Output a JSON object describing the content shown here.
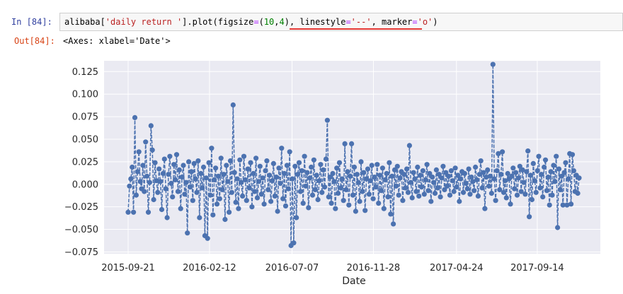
{
  "cell": {
    "in_prompt": "In  [84]:",
    "out_prompt": "Out[84]:",
    "code": {
      "p1": "alibaba[",
      "p2": "'daily return '",
      "p3": "].plot(figsize",
      "p4": "=",
      "p5": "(",
      "p6": "10",
      "p7": ",",
      "p8": "4",
      "p9": "), ",
      "p10": "linestyle",
      "p11": "=",
      "p12": "'--'",
      "p13": ", marker",
      "p14": "=",
      "p15": "'o'",
      "p16": ")"
    },
    "output_text": "<Axes: xlabel='Date'>",
    "highlight_color": "#e53935"
  },
  "chart_data": {
    "type": "line",
    "linestyle": "dashed",
    "marker": "o",
    "color": "#4c72b0",
    "background": "#eaeaf2",
    "grid": true,
    "xlabel": "Date",
    "ylabel": "",
    "x_tick_labels": [
      "2015-09-21",
      "2016-02-12",
      "2016-07-07",
      "2016-11-28",
      "2017-04-24",
      "2017-09-14"
    ],
    "y_ticks": [
      0.125,
      0.1,
      0.075,
      0.05,
      0.025,
      0.0,
      -0.025,
      -0.05,
      -0.075
    ],
    "y_tick_labels": [
      "0.125",
      "0.100",
      "0.075",
      "0.050",
      "0.025",
      "0.000",
      "−0.025",
      "−0.050",
      "−0.075"
    ],
    "ylim": [
      -0.077,
      0.137
    ],
    "xlim_days": [
      0,
      798
    ],
    "x_tick_days": [
      0,
      144,
      290,
      434,
      581,
      724
    ],
    "series": [
      {
        "values": [
          -0.031,
          -0.002,
          0.006,
          0.019,
          -0.031,
          0.074,
          -0.012,
          0.014,
          0.036,
          0.003,
          -0.005,
          0.021,
          -0.008,
          0.047,
          0.009,
          -0.031,
          0.002,
          0.065,
          0.038,
          -0.017,
          0.024,
          0.004,
          -0.009,
          0.017,
          0.003,
          -0.028,
          0.012,
          0.028,
          -0.005,
          -0.037,
          0.011,
          0.031,
          0.001,
          -0.014,
          0.022,
          0.005,
          0.033,
          -0.008,
          0.016,
          -0.027,
          0.008,
          0.021,
          -0.011,
          0.002,
          -0.054,
          0.025,
          -0.003,
          0.014,
          -0.018,
          0.023,
          0.006,
          -0.009,
          0.026,
          -0.037,
          0.012,
          -0.004,
          0.019,
          -0.057,
          0.007,
          -0.06,
          0.024,
          -0.012,
          0.04,
          -0.034,
          0.005,
          0.018,
          -0.022,
          0.009,
          -0.016,
          0.029,
          -0.006,
          0.011,
          -0.039,
          0.021,
          0.003,
          -0.031,
          0.026,
          -0.009,
          0.088,
          0.013,
          -0.02,
          0.006,
          -0.027,
          0.027,
          0.002,
          -0.013,
          0.031,
          0.005,
          -0.018,
          0.017,
          -0.004,
          0.024,
          -0.025,
          0.012,
          -0.008,
          0.029,
          -0.015,
          0.003,
          0.02,
          -0.011,
          0.007,
          -0.022,
          0.015,
          0.026,
          -0.006,
          0.01,
          -0.019,
          0.004,
          0.023,
          -0.013,
          0.008,
          -0.03,
          0.018,
          0.001,
          0.04,
          -0.016,
          0.012,
          -0.024,
          0.021,
          -0.005,
          0.036,
          -0.068,
          0.006,
          -0.065,
          0.02,
          -0.037,
          0.011,
          0.024,
          -0.008,
          0.015,
          -0.021,
          0.031,
          -0.002,
          0.013,
          -0.026,
          0.007,
          0.019,
          -0.012,
          0.027,
          -0.006,
          0.01,
          -0.017,
          0.004,
          0.022,
          -0.009,
          0.016,
          -0.003,
          0.028,
          0.071,
          -0.014,
          0.008,
          -0.021,
          0.012,
          0.003,
          -0.027,
          0.018,
          -0.01,
          0.024,
          -0.004,
          0.006,
          -0.018,
          0.045,
          -0.006,
          0.014,
          -0.023,
          0.009,
          0.045,
          -0.012,
          0.019,
          -0.03,
          0.011,
          0.002,
          -0.019,
          0.025,
          -0.008,
          0.013,
          -0.029,
          0.006,
          0.017,
          -0.011,
          0.004,
          0.021,
          -0.016,
          0.008,
          -0.003,
          0.022,
          -0.021,
          0.01,
          -0.007,
          0.018,
          -0.027,
          0.005,
          0.012,
          -0.014,
          0.024,
          -0.033,
          0.009,
          -0.044,
          0.016,
          -0.002,
          0.02,
          -0.012,
          0.007,
          0.014,
          -0.018,
          0.011,
          -0.004,
          0.017,
          -0.009,
          0.043,
          0.002,
          -0.015,
          0.013,
          0.006,
          -0.008,
          0.019,
          -0.013,
          0.01,
          -0.003,
          0.015,
          -0.011,
          0.005,
          0.022,
          -0.007,
          0.012,
          -0.019,
          0.008,
          0.002,
          -0.01,
          0.016,
          -0.004,
          0.011,
          -0.014,
          0.007,
          0.02,
          -0.006,
          0.013,
          -0.002,
          0.009,
          -0.012,
          0.015,
          0.004,
          -0.008,
          0.018,
          -0.003,
          0.01,
          -0.019,
          0.006,
          0.014,
          -0.009,
          0.012,
          0.001,
          -0.005,
          0.017,
          -0.011,
          0.008,
          0.003,
          -0.007,
          0.019,
          0.005,
          -0.013,
          0.011,
          0.026,
          -0.004,
          0.013,
          -0.027,
          0.008,
          0.016,
          -0.002,
          0.009,
          -0.01,
          0.133,
          0.006,
          -0.018,
          0.015,
          0.034,
          -0.006,
          0.011,
          0.036,
          -0.009,
          0.004,
          -0.015,
          0.012,
          0.006,
          -0.022,
          0.009,
          0.018,
          -0.005,
          0.013,
          -0.012,
          0.007,
          0.02,
          -0.008,
          0.016,
          0.002,
          -0.011,
          0.014,
          0.037,
          -0.036,
          0.01,
          -0.017,
          0.023,
          0.004,
          -0.009,
          0.015,
          0.031,
          -0.004,
          0.011,
          -0.014,
          0.019,
          0.027,
          -0.007,
          0.008,
          -0.023,
          0.014,
          -0.012,
          0.021,
          0.003,
          0.031,
          -0.048,
          0.017,
          -0.006,
          0.009,
          -0.023,
          0.013,
          0.024,
          -0.023,
          0.006,
          0.034,
          -0.022,
          0.033,
          0.015,
          -0.008,
          0.01,
          -0.01,
          0.007
        ]
      }
    ]
  }
}
